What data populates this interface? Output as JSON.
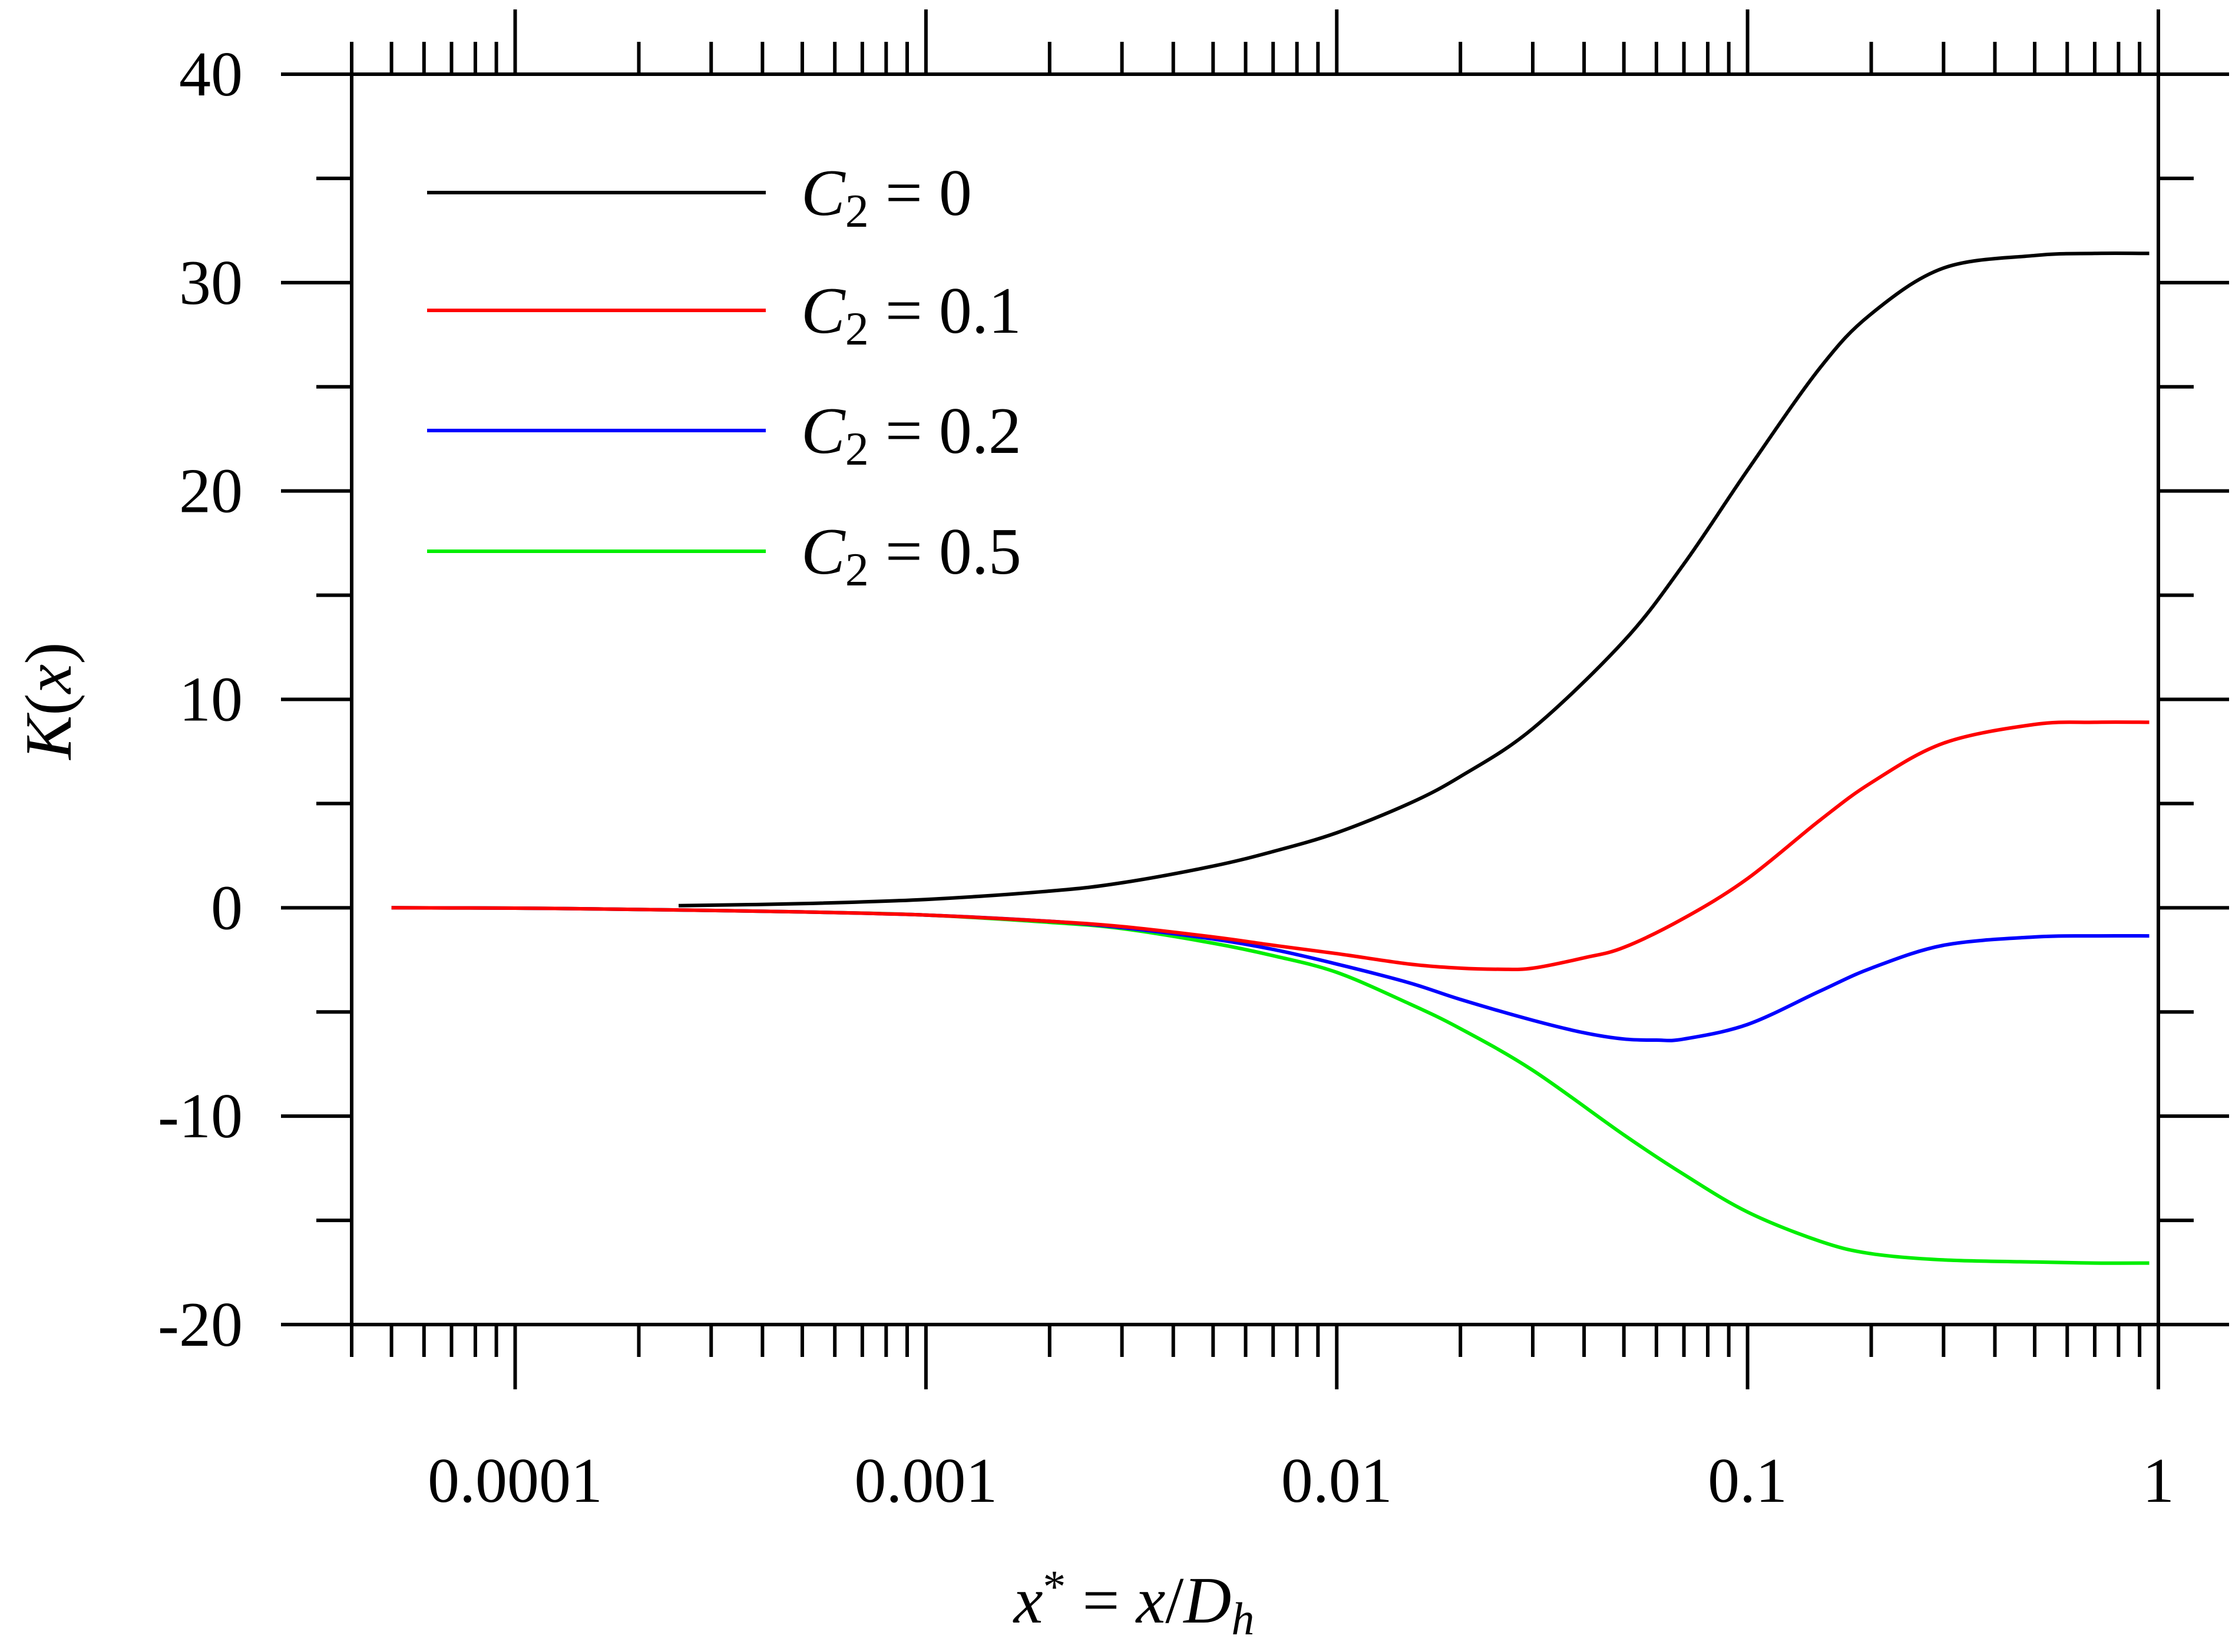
{
  "chart_data": {
    "type": "line",
    "title": "",
    "x_scale": "log",
    "xlim": [
      4e-05,
      1
    ],
    "ylim": [
      -20,
      40
    ],
    "grid": false,
    "legend_position": "top-left",
    "xlabel": {
      "var": "x",
      "sup": "*",
      "eq": " = ",
      "var2": "x",
      "slash": "/",
      "var3": "D",
      "sub": "h"
    },
    "ylabel": {
      "var": "K",
      "open": "(",
      "arg": "x",
      "close": ")"
    },
    "x_tick_labels": [
      "0.0001",
      "0.001",
      "0.01",
      "0.1",
      "1"
    ],
    "x_tick_values": [
      0.0001,
      0.001,
      0.01,
      0.1,
      1
    ],
    "y_tick_labels": [
      "-20",
      "-10",
      "0",
      "10",
      "20",
      "30",
      "40"
    ],
    "y_tick_values": [
      -20,
      -10,
      0,
      10,
      20,
      30,
      40
    ],
    "series": [
      {
        "name": "C2 = 0",
        "legend": {
          "var": "C",
          "sub": "2",
          "rest": " = 0"
        },
        "color": "#000000",
        "x": [
          0.00025,
          0.0005,
          0.001,
          0.002,
          0.003,
          0.005,
          0.007,
          0.01,
          0.015,
          0.02,
          0.03,
          0.05,
          0.07,
          0.1,
          0.15,
          0.2,
          0.3,
          0.5,
          0.7,
          0.95
        ],
        "y": [
          0.1,
          0.2,
          0.4,
          0.8,
          1.2,
          2.0,
          2.7,
          3.6,
          5.0,
          6.3,
          8.6,
          12.8,
          16.5,
          21.0,
          25.9,
          28.5,
          30.7,
          31.3,
          31.4,
          31.4
        ]
      },
      {
        "name": "C2 = 0.1",
        "legend": {
          "var": "C",
          "sub": "2",
          "rest": " = 0.1"
        },
        "color": "#ff0000",
        "x": [
          5e-05,
          0.0001,
          0.0002,
          0.0005,
          0.001,
          0.002,
          0.003,
          0.005,
          0.007,
          0.01,
          0.015,
          0.02,
          0.025,
          0.03,
          0.04,
          0.05,
          0.07,
          0.1,
          0.15,
          0.2,
          0.3,
          0.5,
          0.7,
          0.95
        ],
        "y": [
          0.0,
          -0.02,
          -0.08,
          -0.2,
          -0.35,
          -0.65,
          -0.9,
          -1.4,
          -1.8,
          -2.2,
          -2.7,
          -2.9,
          -2.95,
          -2.9,
          -2.4,
          -1.9,
          -0.5,
          1.4,
          4.2,
          6.0,
          7.9,
          8.8,
          8.9,
          8.9
        ]
      },
      {
        "name": "C2 = 0.2",
        "legend": {
          "var": "C",
          "sub": "2",
          "rest": " = 0.2"
        },
        "color": "#0000ff",
        "x": [
          5e-05,
          0.0001,
          0.0002,
          0.0005,
          0.001,
          0.002,
          0.003,
          0.005,
          0.007,
          0.01,
          0.015,
          0.02,
          0.03,
          0.04,
          0.05,
          0.06,
          0.07,
          0.1,
          0.15,
          0.2,
          0.3,
          0.5,
          0.7,
          0.95
        ],
        "y": [
          0.0,
          -0.02,
          -0.08,
          -0.2,
          -0.35,
          -0.65,
          -0.95,
          -1.5,
          -2.0,
          -2.7,
          -3.6,
          -4.4,
          -5.4,
          -6.0,
          -6.3,
          -6.35,
          -6.3,
          -5.6,
          -4.0,
          -2.9,
          -1.8,
          -1.4,
          -1.35,
          -1.35
        ]
      },
      {
        "name": "C2 = 0.5",
        "legend": {
          "var": "C",
          "sub": "2",
          "rest": " = 0.5"
        },
        "color": "#00ee00",
        "x": [
          5e-05,
          0.0001,
          0.0002,
          0.0005,
          0.001,
          0.002,
          0.003,
          0.005,
          0.007,
          0.01,
          0.015,
          0.02,
          0.03,
          0.05,
          0.07,
          0.1,
          0.15,
          0.2,
          0.3,
          0.5,
          0.7,
          0.95
        ],
        "y": [
          0.0,
          -0.02,
          -0.08,
          -0.2,
          -0.35,
          -0.7,
          -1.0,
          -1.7,
          -2.3,
          -3.1,
          -4.6,
          -5.8,
          -7.8,
          -10.9,
          -12.8,
          -14.6,
          -16.0,
          -16.6,
          -16.9,
          -17.0,
          -17.05,
          -17.05
        ]
      }
    ]
  }
}
